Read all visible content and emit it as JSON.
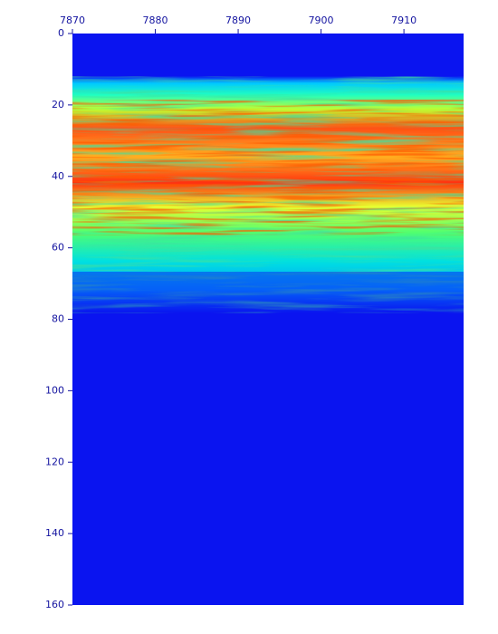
{
  "chart_data": {
    "type": "heatmap",
    "xlim": [
      7870,
      7917.2
    ],
    "xticks": [
      7870,
      7880,
      7890,
      7900,
      7910
    ],
    "x_axis_position": "top",
    "ylim": [
      0,
      160
    ],
    "yticks": [
      0,
      20,
      40,
      60,
      80,
      100,
      120,
      140,
      160
    ],
    "y_inverted": true,
    "axis_color": "#1414a0"
  }
}
